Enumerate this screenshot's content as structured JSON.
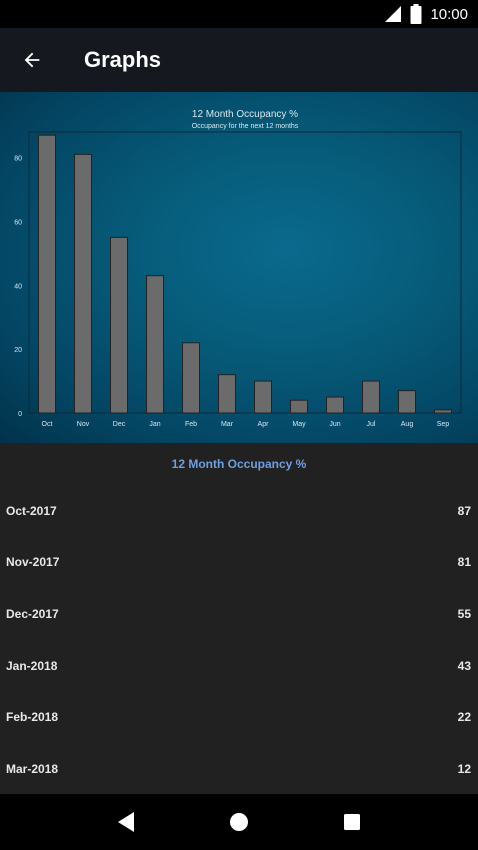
{
  "status_bar": {
    "time": "10:00",
    "icons": [
      "signal-icon",
      "battery-icon"
    ]
  },
  "app_bar": {
    "title": "Graphs",
    "back_icon": "arrow-back-icon"
  },
  "chart_data": {
    "type": "bar",
    "title": "12 Month Occupancy %",
    "subtitle": "Occupancy for the next 12 months",
    "categories": [
      "Oct",
      "Nov",
      "Dec",
      "Jan",
      "Feb",
      "Mar",
      "Apr",
      "May",
      "Jun",
      "Jul",
      "Aug",
      "Sep"
    ],
    "values": [
      87,
      81,
      55,
      43,
      22,
      12,
      10,
      4,
      5,
      10,
      7,
      1
    ],
    "yticks": [
      0,
      20,
      40,
      60,
      80
    ],
    "ylim": [
      0,
      88
    ],
    "grid": false,
    "colors": {
      "bar": "#6b6b6b",
      "bar_stroke": "#222222",
      "text": "#d8e8f0",
      "axis": "#0a2a3a"
    }
  },
  "list": {
    "heading": "12 Month Occupancy %",
    "rows": [
      {
        "month": "Oct-2017",
        "value": "87"
      },
      {
        "month": "Nov-2017",
        "value": "81"
      },
      {
        "month": "Dec-2017",
        "value": "55"
      },
      {
        "month": "Jan-2018",
        "value": "43"
      },
      {
        "month": "Feb-2018",
        "value": "22"
      },
      {
        "month": "Mar-2018",
        "value": "12"
      }
    ]
  },
  "nav_bar": {
    "icons": [
      "back-triangle-icon",
      "home-circle-icon",
      "recents-square-icon"
    ]
  }
}
